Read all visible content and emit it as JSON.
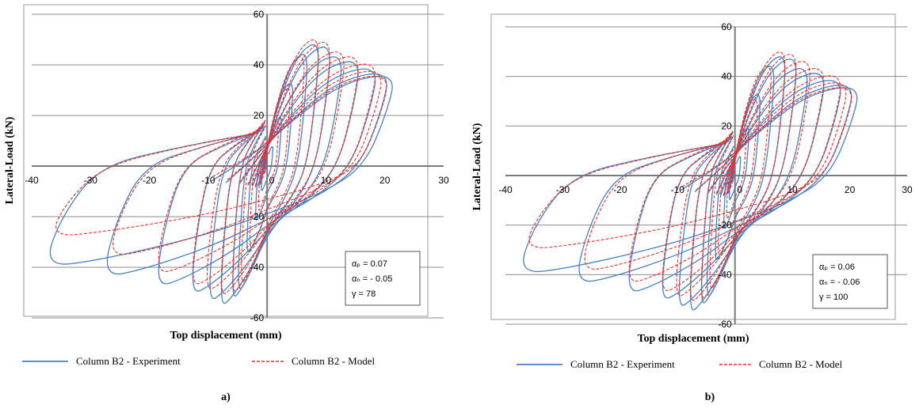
{
  "chart_data": [
    {
      "type": "line",
      "panel_label": "a)",
      "xlabel": "Top displacement (mm)",
      "ylabel": "Lateral-Load (kN)",
      "xlim": [
        -40,
        30
      ],
      "ylim": [
        -60,
        60
      ],
      "xticks": [
        "-40",
        "-30",
        "-20",
        "-10",
        "0",
        "10",
        "20",
        "30"
      ],
      "yticks": [
        "-60",
        "-40",
        "-20",
        "0",
        "20",
        "40",
        "60"
      ],
      "grid": "horizontal",
      "legend_placement": "bottom",
      "params": [
        "αₚ = 0.07",
        "αₙ = - 0.05",
        "γ = 78"
      ],
      "series": [
        {
          "name": "Column B2 - Experiment",
          "color": "#4a7fc1",
          "style": "solid",
          "loops": [
            {
              "xmax": 1.0,
              "ypos": 8,
              "xmin": -1.0,
              "yneg": -10
            },
            {
              "xmax": 2.5,
              "ypos": 20,
              "xmin": -2.0,
              "yneg": -22
            },
            {
              "xmax": 4.5,
              "ypos": 34,
              "xmin": -3.5,
              "yneg": -35
            },
            {
              "xmax": 7.0,
              "ypos": 46,
              "xmin": -5.0,
              "yneg": -50
            },
            {
              "xmax": 9.0,
              "ypos": 50,
              "xmin": -6.0,
              "yneg": -53
            },
            {
              "xmax": 11.0,
              "ypos": 49,
              "xmin": -8.0,
              "yneg": -56
            },
            {
              "xmax": 13.0,
              "ypos": 45,
              "xmin": -10.0,
              "yneg": -54
            },
            {
              "xmax": 16.0,
              "ypos": 43,
              "xmin": -13.0,
              "yneg": -51
            },
            {
              "xmax": 19.0,
              "ypos": 40,
              "xmin": -19.0,
              "yneg": -48
            },
            {
              "xmax": 21.0,
              "ypos": 38,
              "xmin": -28.0,
              "yneg": -44
            },
            {
              "xmax": 22.0,
              "ypos": 37,
              "xmin": -38.0,
              "yneg": -40
            }
          ]
        },
        {
          "name": "Column B2 - Model",
          "color": "#e8312a",
          "style": "dashed",
          "loops": [
            {
              "xmax": 2.0,
              "ypos": 18,
              "xmin": -1.5,
              "yneg": -18
            },
            {
              "xmax": 4.0,
              "ypos": 32,
              "xmin": -3.0,
              "yneg": -33
            },
            {
              "xmax": 6.5,
              "ypos": 45,
              "xmin": -4.5,
              "yneg": -47
            },
            {
              "xmax": 9.0,
              "ypos": 52,
              "xmin": -6.0,
              "yneg": -51
            },
            {
              "xmax": 11.0,
              "ypos": 51,
              "xmin": -8.0,
              "yneg": -52
            },
            {
              "xmax": 13.5,
              "ypos": 47,
              "xmin": -10.5,
              "yneg": -50
            },
            {
              "xmax": 16.0,
              "ypos": 45,
              "xmin": -13.0,
              "yneg": -48
            },
            {
              "xmax": 19.0,
              "ypos": 42,
              "xmin": -19.0,
              "yneg": -43
            },
            {
              "xmax": 20.0,
              "ypos": 39,
              "xmin": -27.0,
              "yneg": -36
            },
            {
              "xmax": 21.0,
              "ypos": 37,
              "xmin": -37.0,
              "yneg": -28
            }
          ]
        }
      ]
    },
    {
      "type": "line",
      "panel_label": "b)",
      "xlabel": "Top displacement (mm)",
      "ylabel": "Lateral-Load (kN)",
      "xlim": [
        -40,
        30
      ],
      "ylim": [
        -60,
        60
      ],
      "xticks": [
        "-40",
        "-30",
        "-20",
        "-10",
        "0",
        "10",
        "20",
        "30"
      ],
      "yticks": [
        "-60",
        "-40",
        "-20",
        "0",
        "20",
        "40",
        "60"
      ],
      "grid": "horizontal",
      "legend_placement": "bottom",
      "params": [
        "αₚ = 0.06",
        "αₙ = - 0.06",
        "γ = 100"
      ],
      "series": [
        {
          "name": "Column B2 - Experiment",
          "color": "#4a7fc1",
          "style": "solid",
          "loops": [
            {
              "xmax": 1.0,
              "ypos": 8,
              "xmin": -1.0,
              "yneg": -10
            },
            {
              "xmax": 2.5,
              "ypos": 20,
              "xmin": -2.0,
              "yneg": -22
            },
            {
              "xmax": 4.5,
              "ypos": 34,
              "xmin": -3.5,
              "yneg": -35
            },
            {
              "xmax": 7.0,
              "ypos": 46,
              "xmin": -5.0,
              "yneg": -50
            },
            {
              "xmax": 9.0,
              "ypos": 50,
              "xmin": -6.0,
              "yneg": -53
            },
            {
              "xmax": 11.0,
              "ypos": 49,
              "xmin": -8.0,
              "yneg": -56
            },
            {
              "xmax": 13.0,
              "ypos": 45,
              "xmin": -10.0,
              "yneg": -54
            },
            {
              "xmax": 16.0,
              "ypos": 43,
              "xmin": -13.0,
              "yneg": -51
            },
            {
              "xmax": 19.0,
              "ypos": 40,
              "xmin": -19.0,
              "yneg": -48
            },
            {
              "xmax": 21.0,
              "ypos": 38,
              "xmin": -28.0,
              "yneg": -44
            },
            {
              "xmax": 22.0,
              "ypos": 37,
              "xmin": -38.0,
              "yneg": -40
            }
          ]
        },
        {
          "name": "Column B2 - Model",
          "color": "#e8312a",
          "style": "dashed",
          "loops": [
            {
              "xmax": 2.0,
              "ypos": 18,
              "xmin": -1.5,
              "yneg": -18
            },
            {
              "xmax": 4.0,
              "ypos": 32,
              "xmin": -3.0,
              "yneg": -33
            },
            {
              "xmax": 6.5,
              "ypos": 46,
              "xmin": -4.5,
              "yneg": -47
            },
            {
              "xmax": 9.0,
              "ypos": 52,
              "xmin": -6.0,
              "yneg": -51
            },
            {
              "xmax": 11.0,
              "ypos": 51,
              "xmin": -8.0,
              "yneg": -52
            },
            {
              "xmax": 13.5,
              "ypos": 48,
              "xmin": -10.5,
              "yneg": -50
            },
            {
              "xmax": 16.0,
              "ypos": 45,
              "xmin": -13.0,
              "yneg": -48
            },
            {
              "xmax": 19.0,
              "ypos": 42,
              "xmin": -19.0,
              "yneg": -44
            },
            {
              "xmax": 20.0,
              "ypos": 39,
              "xmin": -27.0,
              "yneg": -39
            },
            {
              "xmax": 21.0,
              "ypos": 37,
              "xmin": -37.0,
              "yneg": -30
            }
          ]
        }
      ]
    }
  ]
}
